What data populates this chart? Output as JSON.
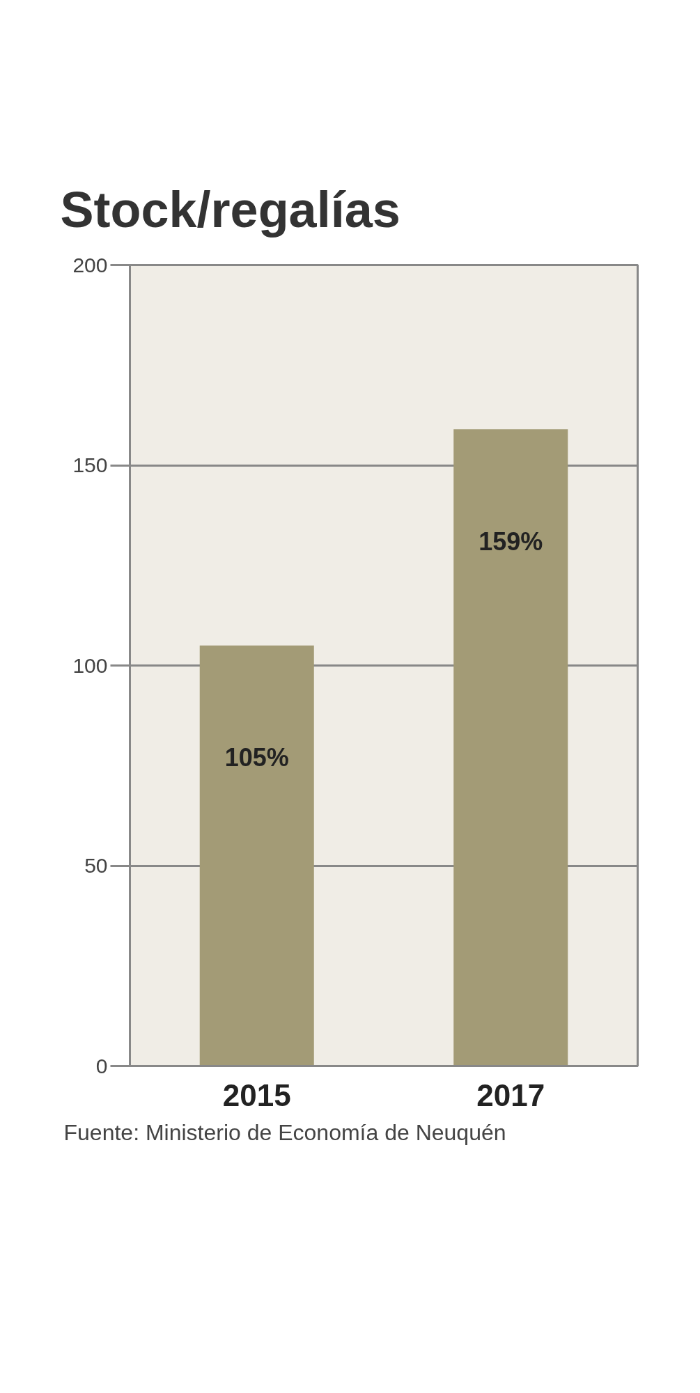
{
  "chart_data": {
    "type": "bar",
    "title": "Stock/regalías",
    "categories": [
      "2015",
      "2017"
    ],
    "values": [
      105,
      159
    ],
    "value_labels": [
      "105%",
      "159%"
    ],
    "color": "#a39b76",
    "ylim": [
      0,
      200
    ],
    "yticks": [
      0,
      50,
      100,
      150,
      200
    ],
    "grid": "y",
    "annotations": [
      "Fuente: Ministerio de Economía de Neuquén"
    ]
  }
}
